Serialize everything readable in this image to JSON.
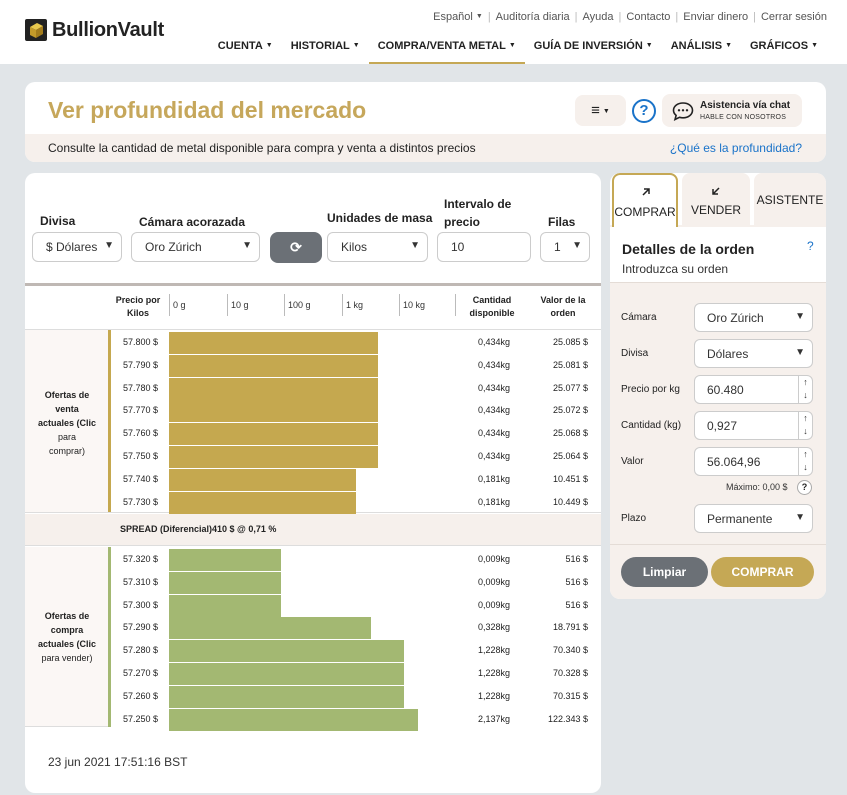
{
  "brand": {
    "name": "BullionVault"
  },
  "toplinks": [
    "Español",
    "Auditoría diaria",
    "Ayuda",
    "Contacto",
    "Enviar dinero",
    "Cerrar sesión"
  ],
  "nav": [
    "CUENTA",
    "HISTORIAL",
    "COMPRA/VENTA METAL",
    "GUÍA DE INVERSIÓN",
    "ANÁLISIS",
    "GRÁFICOS"
  ],
  "header": {
    "title": "Ver profundidad del mercado",
    "subtitle": "Consulte la cantidad de metal disponible para compra y venta a distintos precios",
    "what_link": "¿Qué es la profundidad?",
    "menu_icon": "≡",
    "help": "?",
    "chat_title": "Asistencia vía chat",
    "chat_sub": "HABLE CON NOSOTROS"
  },
  "controls": {
    "divisa_label": "Divisa",
    "divisa_value": "$ Dólares",
    "camara_label": "Cámara acorazada",
    "camara_value": "Oro Zúrich",
    "unidades_label": "Unidades de masa",
    "unidades_value": "Kilos",
    "intervalo_label": "Intervalo de precio",
    "intervalo_value": "10",
    "filas_label": "Filas",
    "filas_value": "1"
  },
  "table": {
    "col_price": "Precio por Kilos",
    "col_qty": "Cantidad disponible",
    "col_val": "Valor de la orden",
    "scale": [
      "0 g",
      "10 g",
      "100 g",
      "1 kg",
      "10 kg"
    ],
    "sell_label": [
      "Ofertas de",
      "venta",
      "actuales (Clic",
      "para",
      "comprar)"
    ],
    "buy_label": [
      "Ofertas de",
      "compra",
      "actuales (Clic",
      "para vender)"
    ],
    "spread": "SPREAD (Diferencial)410 $ @ 0,71 %",
    "timestamp": "23 jun 2021 17:51:16 BST"
  },
  "chart_data": {
    "type": "bar",
    "sell": [
      {
        "price": "57.800 $",
        "qty": "0,434kg",
        "val": "25.085 $",
        "kg": 0.434
      },
      {
        "price": "57.790 $",
        "qty": "0,434kg",
        "val": "25.081 $",
        "kg": 0.434
      },
      {
        "price": "57.780 $",
        "qty": "0,434kg",
        "val": "25.077 $",
        "kg": 0.434
      },
      {
        "price": "57.770 $",
        "qty": "0,434kg",
        "val": "25.072 $",
        "kg": 0.434
      },
      {
        "price": "57.760 $",
        "qty": "0,434kg",
        "val": "25.068 $",
        "kg": 0.434
      },
      {
        "price": "57.750 $",
        "qty": "0,434kg",
        "val": "25.064 $",
        "kg": 0.434
      },
      {
        "price": "57.740 $",
        "qty": "0,181kg",
        "val": "10.451 $",
        "kg": 0.181
      },
      {
        "price": "57.730 $",
        "qty": "0,181kg",
        "val": "10.449 $",
        "kg": 0.181
      }
    ],
    "buy": [
      {
        "price": "57.320 $",
        "qty": "0,009kg",
        "val": "516 $",
        "kg": 0.009
      },
      {
        "price": "57.310 $",
        "qty": "0,009kg",
        "val": "516 $",
        "kg": 0.009
      },
      {
        "price": "57.300 $",
        "qty": "0,009kg",
        "val": "516 $",
        "kg": 0.009
      },
      {
        "price": "57.290 $",
        "qty": "0,328kg",
        "val": "18.791 $",
        "kg": 0.328
      },
      {
        "price": "57.280 $",
        "qty": "1,228kg",
        "val": "70.340 $",
        "kg": 1.228
      },
      {
        "price": "57.270 $",
        "qty": "1,228kg",
        "val": "70.328 $",
        "kg": 1.228
      },
      {
        "price": "57.260 $",
        "qty": "1,228kg",
        "val": "70.315 $",
        "kg": 1.228
      },
      {
        "price": "57.250 $",
        "qty": "2,137kg",
        "val": "122.343 $",
        "kg": 2.137
      }
    ],
    "scale": "log",
    "colors": {
      "sell": "#c5a84f",
      "buy": "#a3b872"
    }
  },
  "order": {
    "tab_buy": "COMPRAR",
    "tab_sell": "VENDER",
    "tab_assist": "ASISTENTE",
    "title": "Detalles de la orden",
    "sub": "Introduzca su orden",
    "help": "?",
    "camara_label": "Cámara",
    "camara_value": "Oro Zúrich",
    "divisa_label": "Divisa",
    "divisa_value": "Dólares",
    "precio_label": "Precio por kg",
    "precio_value": "60.480",
    "cantidad_label": "Cantidad (kg)",
    "cantidad_value": "0,927",
    "valor_label": "Valor",
    "valor_value": "56.064,96",
    "max": "Máximo: 0,00 $",
    "plazo_label": "Plazo",
    "plazo_value": "Permanente",
    "clear": "Limpiar",
    "buy": "COMPRAR"
  }
}
